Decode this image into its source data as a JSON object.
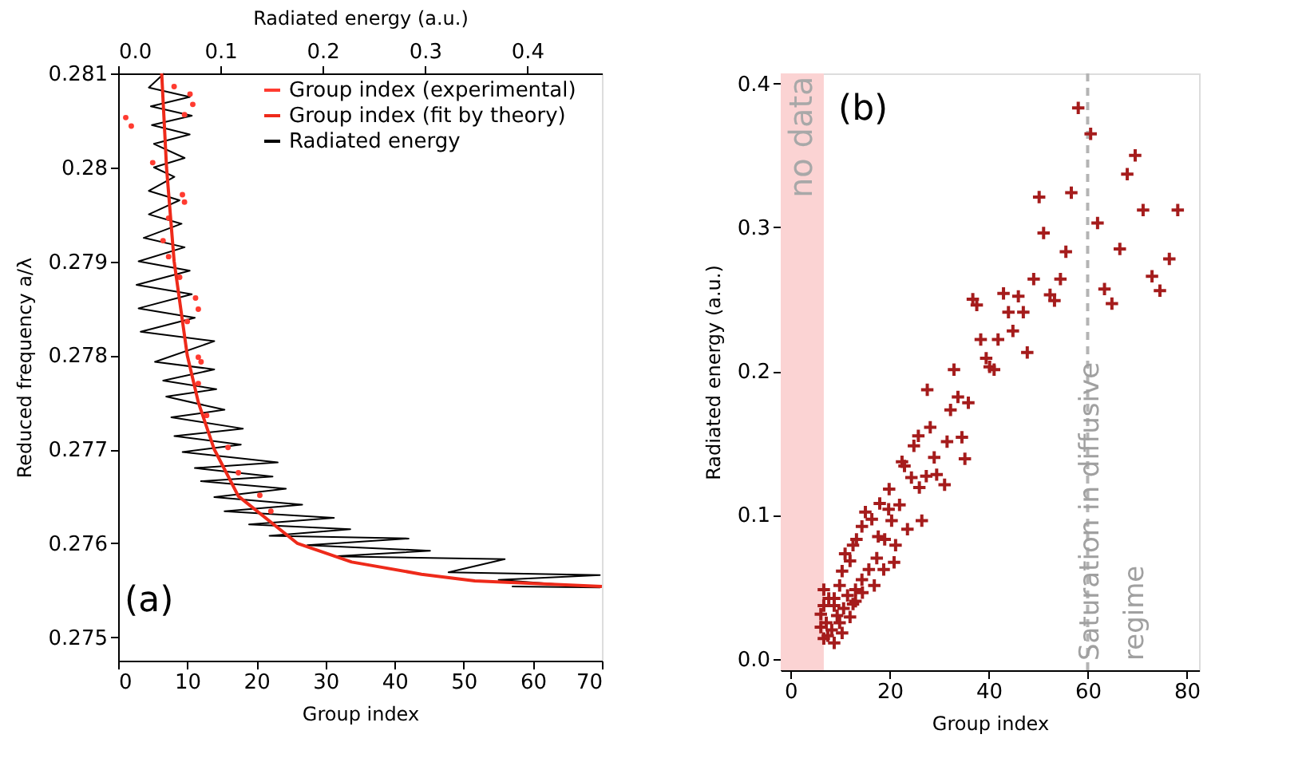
{
  "chart_data": [
    {
      "type": "line",
      "xlabel": "Group index",
      "ylabel": "Reduced frequency a/λ",
      "x2label": "Radiated energy (a.u.)",
      "xlim": [
        0,
        70
      ],
      "xticks": [
        0,
        10,
        20,
        30,
        40,
        50,
        60,
        70
      ],
      "ylim": [
        0.27475,
        0.281
      ],
      "yticks": [
        0.275,
        0.276,
        0.277,
        0.278,
        0.279,
        0.28,
        0.281
      ],
      "x2lim": [
        0,
        0.473
      ],
      "x2ticks": [
        {
          "value": 0,
          "label": "0.0"
        },
        0.1,
        0.2,
        0.3,
        0.4
      ],
      "legend": "top right",
      "annotations": [
        "(a)"
      ],
      "series": [
        {
          "name": "Group index (experimental)",
          "type": "scatter",
          "marker": "circle",
          "color": "#ff3b30",
          "x": [
            1.1,
            1.9,
            8.1,
            10.4,
            10.8,
            9.6,
            5.0,
            9.3,
            9.6,
            7.3,
            6.5,
            7.3,
            8.9,
            11.2,
            11.6,
            10.0,
            11.6,
            12.0,
            11.6,
            12.8,
            15.9,
            17.4,
            20.5,
            22.1
          ],
          "values": [
            0.28053,
            0.28044,
            0.28086,
            0.28078,
            0.28067,
            0.28056,
            0.28005,
            0.27971,
            0.27963,
            0.27946,
            0.27922,
            0.27905,
            0.27883,
            0.27861,
            0.27849,
            0.27836,
            0.27798,
            0.27793,
            0.2777,
            0.27736,
            0.27702,
            0.27675,
            0.27651,
            0.27634
          ]
        },
        {
          "name": "Group index (fit by theory)",
          "type": "line",
          "color": "#ee2a1a",
          "x": [
            6.3,
            7.0,
            8.1,
            10.0,
            11.6,
            13.9,
            17.4,
            25.9,
            33.8,
            43.9,
            51.6,
            70
          ],
          "values": [
            0.281,
            0.28,
            0.279,
            0.278,
            0.2775,
            0.277,
            0.2765,
            0.276,
            0.2758,
            0.27567,
            0.2756,
            0.27554
          ]
        },
        {
          "name": "Radiated energy",
          "type": "line",
          "axis": "x2",
          "color": "#000000",
          "x": [
            0.045,
            0.03,
            0.07,
            0.032,
            0.072,
            0.033,
            0.07,
            0.035,
            0.065,
            0.035,
            0.055,
            0.03,
            0.06,
            0.03,
            0.062,
            0.025,
            0.065,
            0.02,
            0.07,
            0.018,
            0.072,
            0.02,
            0.075,
            0.022,
            0.094,
            0.036,
            0.094,
            0.044,
            0.096,
            0.047,
            0.104,
            0.052,
            0.122,
            0.055,
            0.12,
            0.063,
            0.156,
            0.075,
            0.151,
            0.081,
            0.164,
            0.094,
            0.18,
            0.104,
            0.211,
            0.128,
            0.227,
            0.148,
            0.284,
            0.185,
            0.305,
            0.211,
            0.378,
            0.323,
            0.471,
            0.372,
            0.471,
            0.385
          ],
          "values": [
            0.281,
            0.28085,
            0.28075,
            0.28065,
            0.28055,
            0.28045,
            0.28035,
            0.28025,
            0.2801,
            0.28,
            0.2799,
            0.27975,
            0.27965,
            0.2795,
            0.2794,
            0.27925,
            0.27915,
            0.279,
            0.2789,
            0.27875,
            0.27865,
            0.2785,
            0.2784,
            0.27825,
            0.27815,
            0.27793,
            0.27785,
            0.27773,
            0.27764,
            0.27756,
            0.27742,
            0.27734,
            0.27722,
            0.27714,
            0.27705,
            0.27697,
            0.27686,
            0.2768,
            0.27671,
            0.27666,
            0.27658,
            0.27649,
            0.27641,
            0.27634,
            0.27627,
            0.2762,
            0.27615,
            0.27608,
            0.27605,
            0.27598,
            0.27592,
            0.27586,
            0.27583,
            0.27569,
            0.27566,
            0.27561,
            0.27553,
            0.27554
          ]
        }
      ]
    },
    {
      "type": "scatter",
      "xlabel": "Group index",
      "ylabel": "Radiated energy (a.u.)",
      "xlim": [
        -2,
        82.5
      ],
      "xticks": [
        0,
        20,
        40,
        60,
        80
      ],
      "ylim": [
        -0.008,
        0.407
      ],
      "yticks": [
        {
          "value": 0,
          "label": "0.0"
        },
        0.1,
        0.2,
        0.3,
        0.4
      ],
      "marker": "cross",
      "annotations": [
        "(b)"
      ],
      "bands": [
        {
          "axis": "x",
          "from": -2,
          "to": 6.7,
          "label": "no data",
          "color": "#fbd3d3"
        }
      ],
      "ref_lines": [
        {
          "axis": "x",
          "value": 60,
          "label": "Saturation in diffusive regime",
          "color": "#b4b4b4",
          "line_style": "dashed"
        }
      ],
      "series": [
        {
          "color": "#a51c1c",
          "x": [
            58.1,
            60.6,
            69.6,
            68.0,
            50.2,
            56.7,
            71.2,
            78.2,
            62.0,
            51.1,
            55.6,
            66.5,
            76.5,
            49.1,
            54.5,
            73.0,
            74.6,
            63.4,
            64.9,
            36.8,
            37.6,
            43.0,
            46.0,
            52.4,
            53.3,
            44.0,
            47.0,
            38.4,
            41.9,
            44.9,
            47.8,
            39.5,
            40.2,
            41.1,
            33.0,
            27.6,
            33.8,
            35.9,
            32.3,
            28.2,
            25.8,
            31.6,
            34.6,
            24.9,
            29.0,
            35.2,
            22.5,
            23.0,
            24.4,
            27.4,
            29.5,
            31.1,
            26.0,
            19.9,
            18.0,
            19.8,
            22.0,
            15.1,
            16.4,
            20.4,
            26.5,
            14.4,
            23.6,
            17.7,
            19.0,
            13.3,
            12.6,
            21.2,
            11.0,
            17.4,
            20.9,
            12.0,
            15.8,
            18.8,
            10.4,
            16.9,
            14.4,
            13.1,
            9.9,
            6.7,
            7.7,
            11.5,
            13.1,
            6.7,
            8.8,
            10.7,
            6.1,
            9.4,
            12.0,
            7.2,
            9.9,
            6.1,
            8.3,
            10.4,
            6.7,
            8.8,
            7.5,
            12.6,
            14.5,
            8.8
          ],
          "values": [
            0.383,
            0.365,
            0.35,
            0.337,
            0.321,
            0.324,
            0.312,
            0.312,
            0.303,
            0.296,
            0.283,
            0.285,
            0.278,
            0.264,
            0.264,
            0.266,
            0.256,
            0.257,
            0.247,
            0.25,
            0.246,
            0.254,
            0.252,
            0.253,
            0.249,
            0.241,
            0.241,
            0.222,
            0.222,
            0.228,
            0.213,
            0.209,
            0.203,
            0.201,
            0.201,
            0.187,
            0.182,
            0.178,
            0.173,
            0.161,
            0.155,
            0.151,
            0.154,
            0.148,
            0.14,
            0.139,
            0.137,
            0.134,
            0.126,
            0.127,
            0.128,
            0.121,
            0.119,
            0.118,
            0.108,
            0.104,
            0.107,
            0.102,
            0.097,
            0.096,
            0.096,
            0.092,
            0.09,
            0.085,
            0.083,
            0.083,
            0.079,
            0.079,
            0.073,
            0.07,
            0.067,
            0.068,
            0.062,
            0.062,
            0.061,
            0.051,
            0.055,
            0.048,
            0.051,
            0.048,
            0.042,
            0.044,
            0.04,
            0.037,
            0.037,
            0.035,
            0.031,
            0.03,
            0.029,
            0.025,
            0.025,
            0.022,
            0.02,
            0.018,
            0.014,
            0.011,
            0.016,
            0.038,
            0.046,
            0.042
          ]
        }
      ]
    }
  ]
}
